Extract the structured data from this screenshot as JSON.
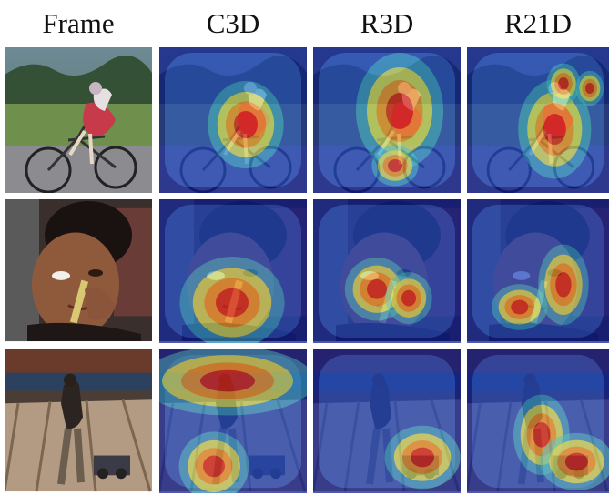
{
  "figure": {
    "columns": [
      "Frame",
      "C3D",
      "R3D",
      "R21D"
    ],
    "rows": [
      {
        "scene": "cyclist",
        "cells": [
          {
            "kind": "frame",
            "icon": "cyclist-photo"
          },
          {
            "kind": "heatmap",
            "icon": "cyclist-heatmap-c3d"
          },
          {
            "kind": "heatmap",
            "icon": "cyclist-heatmap-r3d"
          },
          {
            "kind": "heatmap",
            "icon": "cyclist-heatmap-r21d"
          }
        ]
      },
      {
        "scene": "makeup",
        "cells": [
          {
            "kind": "frame",
            "icon": "makeup-photo"
          },
          {
            "kind": "heatmap",
            "icon": "makeup-heatmap-c3d"
          },
          {
            "kind": "heatmap",
            "icon": "makeup-heatmap-r3d"
          },
          {
            "kind": "heatmap",
            "icon": "makeup-heatmap-r21d"
          }
        ]
      },
      {
        "scene": "bowling",
        "cells": [
          {
            "kind": "frame",
            "icon": "bowling-photo"
          },
          {
            "kind": "heatmap",
            "icon": "bowling-heatmap-c3d"
          },
          {
            "kind": "heatmap",
            "icon": "bowling-heatmap-r3d"
          },
          {
            "kind": "heatmap",
            "icon": "bowling-heatmap-r21d"
          }
        ]
      }
    ],
    "colors": {
      "jet_dark_blue": "#0b1a8c",
      "jet_blue": "#2c5cd6",
      "jet_cyan": "#3fd0d8",
      "jet_yellow": "#f1e64a",
      "jet_orange": "#f08a2a",
      "jet_red": "#d8221c"
    }
  }
}
